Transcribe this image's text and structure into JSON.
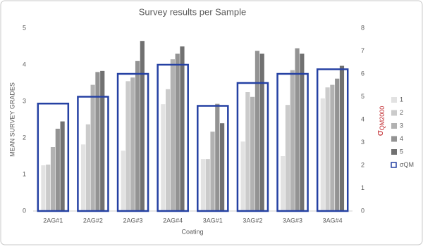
{
  "chart_data": {
    "type": "bar",
    "title": "Survey results per Sample",
    "x_label": "Coating",
    "y_label": "MEAN SURVEY GRADES",
    "y2_label": {
      "symbol": "σ",
      "subscript": "QM2000"
    },
    "categories": [
      "2AG#1",
      "2AG#2",
      "2AG#3",
      "2AG#4",
      "3AG#1",
      "3AG#2",
      "3AG#3",
      "3AG#4"
    ],
    "series": [
      {
        "name": "1",
        "color": "#e2e2e2",
        "values": [
          1.25,
          1.82,
          1.65,
          2.92,
          1.42,
          1.9,
          1.5,
          3.08
        ]
      },
      {
        "name": "2",
        "color": "#cbcbcb",
        "values": [
          1.27,
          2.37,
          3.55,
          3.33,
          1.42,
          3.25,
          2.9,
          3.38
        ]
      },
      {
        "name": "3",
        "color": "#b2b2b2",
        "values": [
          1.75,
          3.45,
          3.65,
          4.15,
          2.17,
          3.12,
          3.85,
          3.45
        ]
      },
      {
        "name": "4",
        "color": "#939393",
        "values": [
          2.25,
          3.8,
          4.1,
          4.3,
          2.93,
          4.38,
          4.45,
          3.62
        ]
      },
      {
        "name": "5",
        "color": "#717171",
        "values": [
          2.45,
          3.83,
          4.65,
          4.5,
          2.4,
          4.3,
          4.3,
          3.97
        ]
      },
      {
        "name": "σQM",
        "color": "#2541a3",
        "axis": "y2",
        "style": "outline",
        "values": [
          4.7,
          5.0,
          6.0,
          6.4,
          4.6,
          5.6,
          6.0,
          6.2
        ]
      }
    ],
    "ylim": [
      0,
      5
    ],
    "yticks": [
      0,
      1,
      2,
      3,
      4,
      5
    ],
    "y2lim": [
      0,
      8
    ],
    "y2ticks": [
      0,
      1,
      2,
      3,
      4,
      5,
      6,
      7,
      8
    ],
    "y2_label_color": "#c0282d",
    "grid": false,
    "legend": "right"
  }
}
